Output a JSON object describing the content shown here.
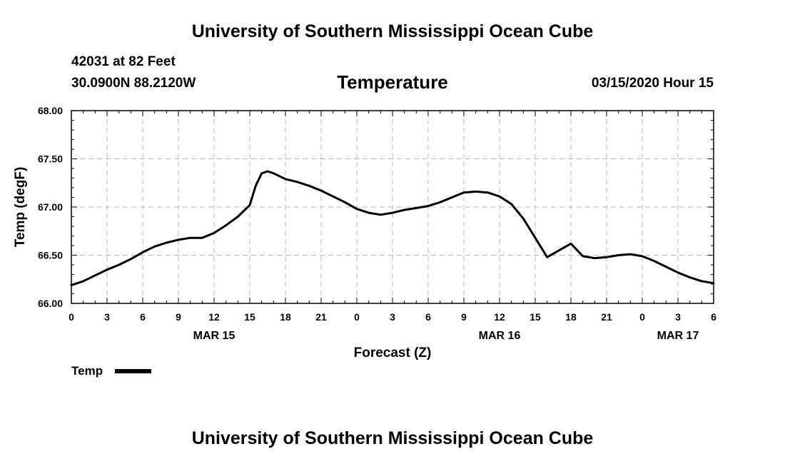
{
  "header": {
    "title": "University of Southern Mississippi Ocean Cube",
    "station": "42031 at 82 Feet",
    "coords": "30.0900N 88.2120W",
    "variable": "Temperature",
    "datetime": "03/15/2020 Hour 15"
  },
  "footer": {
    "title": "University of Southern Mississippi Ocean Cube"
  },
  "chart_data": {
    "type": "line",
    "xlabel": "Forecast (Z)",
    "ylabel": "Temp (degF)",
    "x_unit": "hours",
    "xlim": [
      0,
      54
    ],
    "ylim": [
      66.0,
      68.0
    ],
    "ytick_step": 0.5,
    "y_tick_labels": [
      "66.00",
      "66.50",
      "67.00",
      "67.50",
      "68.00"
    ],
    "x_ticks": [
      0,
      3,
      6,
      9,
      12,
      15,
      18,
      21,
      24,
      27,
      30,
      33,
      36,
      39,
      42,
      45,
      48,
      51,
      54
    ],
    "x_tick_labels": [
      "0",
      "3",
      "6",
      "9",
      "12",
      "15",
      "18",
      "21",
      "0",
      "3",
      "6",
      "9",
      "12",
      "15",
      "18",
      "21",
      "0",
      "3",
      "6"
    ],
    "date_labels": [
      {
        "at": 12,
        "label": "MAR 15"
      },
      {
        "at": 36,
        "label": "MAR 16"
      },
      {
        "at": 51,
        "label": "MAR 17"
      }
    ],
    "grid": true,
    "line_color": "#000000",
    "series": [
      {
        "name": "Temp",
        "x": [
          0,
          1,
          2,
          3,
          4,
          5,
          6,
          7,
          8,
          9,
          10,
          11,
          12,
          13,
          14,
          15,
          15.5,
          16,
          16.5,
          17,
          18,
          19,
          20,
          21,
          22,
          23,
          24,
          25,
          26,
          27,
          28,
          29,
          30,
          31,
          32,
          33,
          34,
          35,
          36,
          37,
          38,
          39,
          40,
          41,
          42,
          43,
          44,
          45,
          46,
          47,
          48,
          49,
          50,
          51,
          52,
          53,
          54
        ],
        "y": [
          66.19,
          66.23,
          66.29,
          66.35,
          66.4,
          66.46,
          66.53,
          66.59,
          66.63,
          66.66,
          66.68,
          66.68,
          66.73,
          66.81,
          66.9,
          67.02,
          67.22,
          67.35,
          67.37,
          67.35,
          67.29,
          67.26,
          67.22,
          67.17,
          67.11,
          67.05,
          66.98,
          66.94,
          66.92,
          66.94,
          66.97,
          66.99,
          67.01,
          67.05,
          67.1,
          67.15,
          67.16,
          67.15,
          67.11,
          67.03,
          66.88,
          66.68,
          66.48,
          66.55,
          66.62,
          66.49,
          66.47,
          66.48,
          66.5,
          66.51,
          66.49,
          66.44,
          66.38,
          66.32,
          66.27,
          66.23,
          66.21
        ]
      }
    ],
    "legend": {
      "label": "Temp",
      "position": "bottom-left"
    }
  }
}
